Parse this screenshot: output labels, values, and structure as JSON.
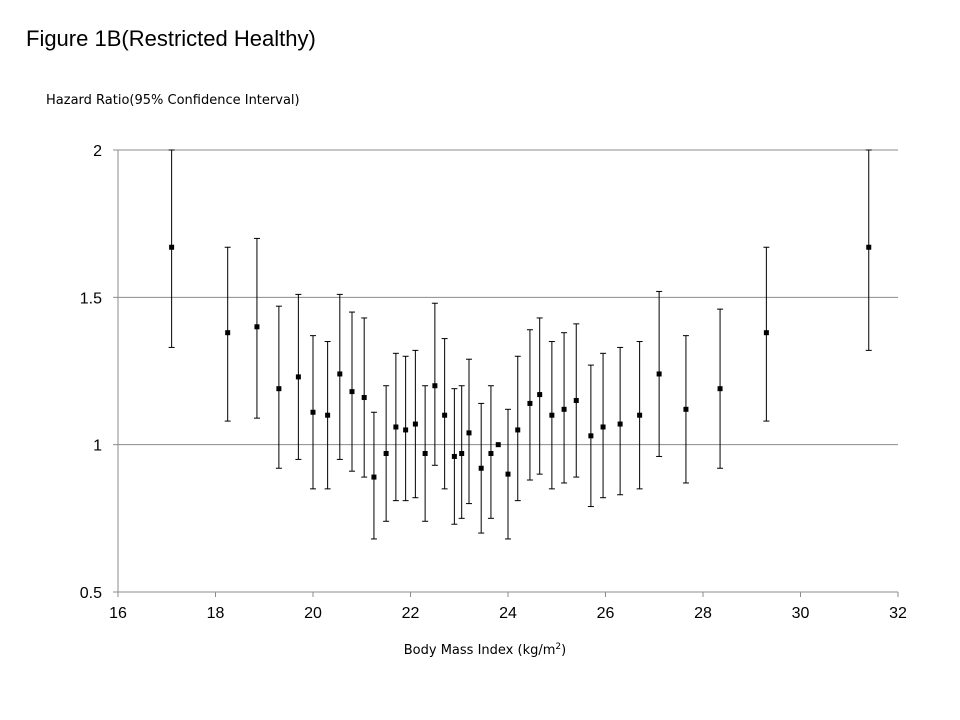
{
  "figure_title": "Figure 1B(Restricted Healthy)",
  "chart_data": {
    "type": "scatter",
    "title": "",
    "ylabel": "Hazard Ratio(95% Confidence Interval)",
    "xlabel_main": "Body Mass Index (kg/m",
    "xlabel_sup": "2",
    "xlabel_end": ")",
    "xlim": [
      16,
      32
    ],
    "ylim": [
      0.5,
      2
    ],
    "xticks": [
      16,
      18,
      20,
      22,
      24,
      26,
      28,
      30,
      32
    ],
    "xtick_labels": [
      "16",
      "18",
      "20",
      "22",
      "24",
      "26",
      "28",
      "30",
      "32"
    ],
    "yticks": [
      0.5,
      1,
      1.5,
      2
    ],
    "ytick_labels": [
      "0.5",
      "1",
      "1.5",
      "2"
    ],
    "grid": "horizontal",
    "legend": "none",
    "colors": {
      "marker": "#000000",
      "grid": "#8c8c8c"
    },
    "points": [
      {
        "x": 17.1,
        "y": 1.67,
        "lo": 1.33,
        "hi": 2.0
      },
      {
        "x": 18.25,
        "y": 1.38,
        "lo": 1.08,
        "hi": 1.67
      },
      {
        "x": 18.85,
        "y": 1.4,
        "lo": 1.09,
        "hi": 1.7
      },
      {
        "x": 19.3,
        "y": 1.19,
        "lo": 0.92,
        "hi": 1.47
      },
      {
        "x": 19.7,
        "y": 1.23,
        "lo": 0.95,
        "hi": 1.51
      },
      {
        "x": 20.0,
        "y": 1.11,
        "lo": 0.85,
        "hi": 1.37
      },
      {
        "x": 20.3,
        "y": 1.1,
        "lo": 0.85,
        "hi": 1.35
      },
      {
        "x": 20.55,
        "y": 1.24,
        "lo": 0.95,
        "hi": 1.51
      },
      {
        "x": 20.8,
        "y": 1.18,
        "lo": 0.91,
        "hi": 1.45
      },
      {
        "x": 21.05,
        "y": 1.16,
        "lo": 0.89,
        "hi": 1.43
      },
      {
        "x": 21.25,
        "y": 0.89,
        "lo": 0.68,
        "hi": 1.11
      },
      {
        "x": 21.5,
        "y": 0.97,
        "lo": 0.74,
        "hi": 1.2
      },
      {
        "x": 21.7,
        "y": 1.06,
        "lo": 0.81,
        "hi": 1.31
      },
      {
        "x": 21.9,
        "y": 1.05,
        "lo": 0.81,
        "hi": 1.3
      },
      {
        "x": 22.1,
        "y": 1.07,
        "lo": 0.82,
        "hi": 1.32
      },
      {
        "x": 22.3,
        "y": 0.97,
        "lo": 0.74,
        "hi": 1.2
      },
      {
        "x": 22.5,
        "y": 1.2,
        "lo": 0.93,
        "hi": 1.48
      },
      {
        "x": 22.7,
        "y": 1.1,
        "lo": 0.85,
        "hi": 1.36
      },
      {
        "x": 22.9,
        "y": 0.96,
        "lo": 0.73,
        "hi": 1.19
      },
      {
        "x": 23.05,
        "y": 0.97,
        "lo": 0.75,
        "hi": 1.2
      },
      {
        "x": 23.2,
        "y": 1.04,
        "lo": 0.8,
        "hi": 1.29
      },
      {
        "x": 23.45,
        "y": 0.92,
        "lo": 0.7,
        "hi": 1.14
      },
      {
        "x": 23.65,
        "y": 0.97,
        "lo": 0.75,
        "hi": 1.2
      },
      {
        "x": 23.8,
        "y": 1.0,
        "lo": 1.0,
        "hi": 1.0
      },
      {
        "x": 24.0,
        "y": 0.9,
        "lo": 0.68,
        "hi": 1.12
      },
      {
        "x": 24.2,
        "y": 1.05,
        "lo": 0.81,
        "hi": 1.3
      },
      {
        "x": 24.45,
        "y": 1.14,
        "lo": 0.88,
        "hi": 1.39
      },
      {
        "x": 24.65,
        "y": 1.17,
        "lo": 0.9,
        "hi": 1.43
      },
      {
        "x": 24.9,
        "y": 1.1,
        "lo": 0.85,
        "hi": 1.35
      },
      {
        "x": 25.15,
        "y": 1.12,
        "lo": 0.87,
        "hi": 1.38
      },
      {
        "x": 25.4,
        "y": 1.15,
        "lo": 0.89,
        "hi": 1.41
      },
      {
        "x": 25.7,
        "y": 1.03,
        "lo": 0.79,
        "hi": 1.27
      },
      {
        "x": 25.95,
        "y": 1.06,
        "lo": 0.82,
        "hi": 1.31
      },
      {
        "x": 26.3,
        "y": 1.07,
        "lo": 0.83,
        "hi": 1.33
      },
      {
        "x": 26.7,
        "y": 1.1,
        "lo": 0.85,
        "hi": 1.35
      },
      {
        "x": 27.1,
        "y": 1.24,
        "lo": 0.96,
        "hi": 1.52
      },
      {
        "x": 27.65,
        "y": 1.12,
        "lo": 0.87,
        "hi": 1.37
      },
      {
        "x": 28.35,
        "y": 1.19,
        "lo": 0.92,
        "hi": 1.46
      },
      {
        "x": 29.3,
        "y": 1.38,
        "lo": 1.08,
        "hi": 1.67
      },
      {
        "x": 31.4,
        "y": 1.67,
        "lo": 1.32,
        "hi": 2.0
      }
    ]
  }
}
